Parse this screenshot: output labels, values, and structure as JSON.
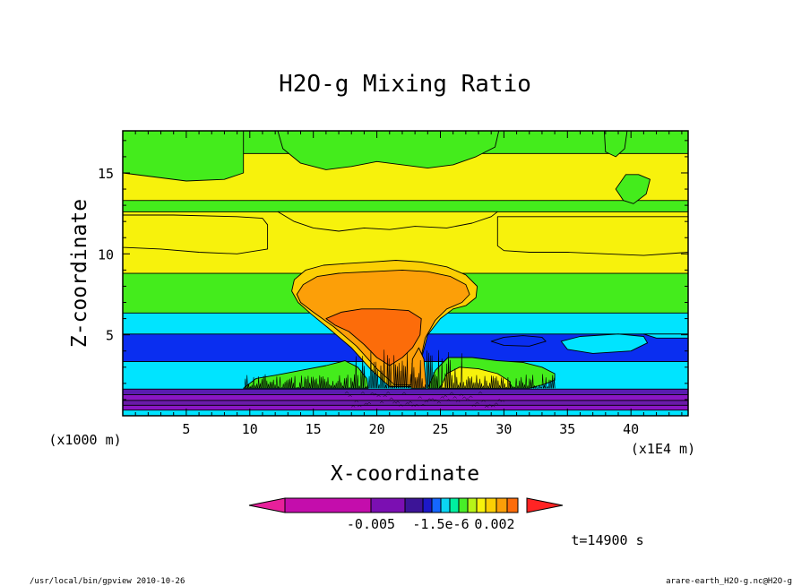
{
  "chart_data": {
    "type": "heatmap",
    "title": "H2O-g Mixing Ratio",
    "xlabel": "X-coordinate",
    "ylabel": "Z-coordinate",
    "x_unit_note": "(x1E4 m)",
    "y_unit_note": "(x1000 m)",
    "xlim": [
      0,
      44.5
    ],
    "ylim": [
      0,
      17.6
    ],
    "x_ticks": [
      5,
      10,
      15,
      20,
      25,
      30,
      35,
      40
    ],
    "y_ticks": [
      5,
      10,
      15
    ],
    "colorbar": {
      "colors": [
        "#e7209b",
        "#c40dac",
        "#7b0fb2",
        "#3c1497",
        "#1d18c7",
        "#1566ff",
        "#0bd6f4",
        "#00f0a0",
        "#48ee28",
        "#b7f418",
        "#f7f20c",
        "#fccf04",
        "#fc9f08",
        "#fc6c0a",
        "#ff2424"
      ],
      "labels": [
        "-0.005",
        "-1.5e-6",
        "0.002"
      ]
    },
    "time_label": "t=14900 s",
    "footer_left": "/usr/local/bin/gpview  2010-10-26",
    "footer_right": "arare-earth_H2O-g.nc@H2O-g",
    "bands": [
      {
        "z_from": 0,
        "z_to": 0.35,
        "color": "#00e4ff"
      },
      {
        "z_from": 0.35,
        "z_to": 0.65,
        "color": "#8a16c4"
      },
      {
        "z_from": 0.65,
        "z_to": 0.95,
        "color": "#6a1aa8"
      },
      {
        "z_from": 0.95,
        "z_to": 1.3,
        "color": "#8a16c4"
      },
      {
        "z_from": 1.3,
        "z_to": 1.65,
        "color": "#5a1cb0"
      },
      {
        "z_from": 1.65,
        "z_to": 3.35,
        "color": "#00e4ff"
      },
      {
        "z_from": 3.35,
        "z_to": 5.05,
        "color": "#0a2ef0"
      },
      {
        "z_from": 5.05,
        "z_to": 6.35,
        "color": "#00e4ff"
      },
      {
        "z_from": 6.35,
        "z_to": 8.8,
        "color": "#44ec1c"
      },
      {
        "z_from": 8.8,
        "z_to": 12.6,
        "color": "#f7f20c"
      },
      {
        "z_from": 12.6,
        "z_to": 13.3,
        "color": "#44ec1c"
      },
      {
        "z_from": 13.3,
        "z_to": 16.2,
        "color": "#f7f20c"
      },
      {
        "z_from": 16.2,
        "z_to": 17.6,
        "color": "#44ec1c"
      }
    ],
    "regions": [
      {
        "color": "#f7f20c",
        "points": [
          [
            12.2,
            12.6
          ],
          [
            13.5,
            12.0
          ],
          [
            15.0,
            11.6
          ],
          [
            17.0,
            11.4
          ],
          [
            19.0,
            11.6
          ],
          [
            21.0,
            11.5
          ],
          [
            23.0,
            11.7
          ],
          [
            25.5,
            11.6
          ],
          [
            27.5,
            11.9
          ],
          [
            29.0,
            12.3
          ],
          [
            29.5,
            12.6
          ]
        ]
      },
      {
        "color": "#44ec1c",
        "points": [
          [
            0,
            15.0
          ],
          [
            5.0,
            14.5
          ],
          [
            8.0,
            14.6
          ],
          [
            9.5,
            15.0
          ],
          [
            9.5,
            17.6
          ],
          [
            0,
            17.6
          ]
        ]
      },
      {
        "color": "#44ec1c",
        "points": [
          [
            12.2,
            17.6
          ],
          [
            12.6,
            16.5
          ],
          [
            14.0,
            15.6
          ],
          [
            16.0,
            15.2
          ],
          [
            18.0,
            15.4
          ],
          [
            20.0,
            15.7
          ],
          [
            22.0,
            15.5
          ],
          [
            24.0,
            15.3
          ],
          [
            26.0,
            15.5
          ],
          [
            27.8,
            16.0
          ],
          [
            29.3,
            16.6
          ],
          [
            29.6,
            17.6
          ]
        ]
      },
      {
        "color": "#44ec1c",
        "points": [
          [
            37.9,
            17.6
          ],
          [
            38.0,
            16.3
          ],
          [
            38.8,
            16.0
          ],
          [
            39.5,
            16.5
          ],
          [
            39.7,
            17.6
          ]
        ]
      },
      {
        "color": "#44ec1c",
        "points": [
          [
            38.8,
            14.0
          ],
          [
            39.4,
            13.3
          ],
          [
            40.2,
            13.1
          ],
          [
            41.2,
            13.7
          ],
          [
            41.5,
            14.6
          ],
          [
            40.6,
            14.9
          ],
          [
            39.6,
            14.9
          ]
        ]
      },
      {
        "color": "#f7f20c",
        "points": [
          [
            29.5,
            12.3
          ],
          [
            32.0,
            12.3
          ],
          [
            36.0,
            12.3
          ],
          [
            40.0,
            12.3
          ],
          [
            44.5,
            12.3
          ],
          [
            44.5,
            10.1
          ],
          [
            41.0,
            9.9
          ],
          [
            38.0,
            10.0
          ],
          [
            35.0,
            10.1
          ],
          [
            32.0,
            10.1
          ],
          [
            30.0,
            10.2
          ],
          [
            29.5,
            10.5
          ]
        ]
      },
      {
        "color": "#f7f20c",
        "points": [
          [
            0,
            12.4
          ],
          [
            4.0,
            12.4
          ],
          [
            9.0,
            12.3
          ],
          [
            11.0,
            12.2
          ],
          [
            11.4,
            11.8
          ],
          [
            11.4,
            10.3
          ],
          [
            9.0,
            10.0
          ],
          [
            6.0,
            10.1
          ],
          [
            3.0,
            10.3
          ],
          [
            0,
            10.4
          ]
        ]
      },
      {
        "color": "#fccf04",
        "points": [
          [
            13.3,
            7.7
          ],
          [
            13.5,
            8.4
          ],
          [
            14.4,
            9.0
          ],
          [
            15.8,
            9.3
          ],
          [
            17.5,
            9.4
          ],
          [
            19.5,
            9.5
          ],
          [
            21.5,
            9.6
          ],
          [
            23.5,
            9.5
          ],
          [
            25.5,
            9.2
          ],
          [
            27.0,
            8.7
          ],
          [
            27.9,
            8.0
          ],
          [
            27.8,
            7.3
          ],
          [
            27.0,
            6.8
          ],
          [
            26.0,
            6.6
          ],
          [
            25.0,
            6.0
          ],
          [
            24.0,
            5.0
          ],
          [
            23.5,
            3.5
          ],
          [
            23.0,
            1.8
          ],
          [
            21.0,
            1.8
          ],
          [
            19.6,
            2.8
          ],
          [
            18.0,
            4.2
          ],
          [
            16.2,
            5.4
          ],
          [
            14.8,
            6.3
          ],
          [
            13.8,
            7.0
          ]
        ]
      },
      {
        "color": "#fc9f08",
        "points": [
          [
            13.7,
            7.5
          ],
          [
            14.2,
            8.1
          ],
          [
            15.3,
            8.6
          ],
          [
            17.0,
            8.8
          ],
          [
            19.5,
            8.9
          ],
          [
            22.0,
            9.0
          ],
          [
            24.0,
            8.9
          ],
          [
            25.8,
            8.6
          ],
          [
            27.0,
            8.1
          ],
          [
            27.3,
            7.5
          ],
          [
            26.7,
            7.0
          ],
          [
            25.5,
            6.6
          ],
          [
            24.6,
            5.9
          ],
          [
            23.8,
            4.8
          ],
          [
            23.4,
            3.3
          ],
          [
            22.9,
            1.9
          ],
          [
            21.4,
            1.9
          ],
          [
            20.0,
            2.9
          ],
          [
            18.4,
            4.3
          ],
          [
            16.6,
            5.5
          ],
          [
            15.0,
            6.4
          ],
          [
            14.0,
            7.0
          ]
        ]
      },
      {
        "color": "#fc6c0a",
        "points": [
          [
            16.0,
            6.0
          ],
          [
            17.2,
            6.4
          ],
          [
            18.8,
            6.6
          ],
          [
            20.5,
            6.6
          ],
          [
            22.5,
            6.5
          ],
          [
            23.5,
            6.0
          ],
          [
            23.4,
            5.0
          ],
          [
            22.8,
            4.2
          ],
          [
            22.0,
            3.6
          ],
          [
            21.0,
            3.1
          ],
          [
            20.0,
            3.6
          ],
          [
            19.0,
            4.4
          ],
          [
            17.8,
            5.2
          ],
          [
            16.7,
            5.6
          ]
        ]
      },
      {
        "color": "#0a2ef0",
        "points": [
          [
            29.0,
            4.6
          ],
          [
            30.0,
            4.85
          ],
          [
            31.5,
            4.95
          ],
          [
            33.0,
            4.85
          ],
          [
            33.3,
            4.6
          ],
          [
            32.0,
            4.3
          ],
          [
            30.0,
            4.35
          ]
        ]
      },
      {
        "color": "#00e4ff",
        "points": [
          [
            34.5,
            4.6
          ],
          [
            36.0,
            4.9
          ],
          [
            39.0,
            5.05
          ],
          [
            41.0,
            4.9
          ],
          [
            41.3,
            4.5
          ],
          [
            40.0,
            4.0
          ],
          [
            37.0,
            3.85
          ],
          [
            35.0,
            4.1
          ]
        ]
      },
      {
        "color": "#00e4ff",
        "points": [
          [
            41.0,
            5.05
          ],
          [
            44.5,
            5.05
          ],
          [
            44.5,
            4.8
          ],
          [
            42.0,
            4.8
          ]
        ]
      },
      {
        "color": "#44ec1c",
        "points": [
          [
            9.5,
            1.7
          ],
          [
            10.5,
            2.3
          ],
          [
            12.0,
            2.5
          ],
          [
            14.0,
            2.8
          ],
          [
            16.0,
            3.1
          ],
          [
            17.5,
            3.4
          ],
          [
            18.5,
            3.0
          ],
          [
            19.2,
            2.3
          ],
          [
            19.3,
            1.7
          ]
        ]
      },
      {
        "color": "#44ec1c",
        "points": [
          [
            24.0,
            1.7
          ],
          [
            24.6,
            2.8
          ],
          [
            25.6,
            3.6
          ],
          [
            27.5,
            3.6
          ],
          [
            29.5,
            3.4
          ],
          [
            31.5,
            3.3
          ],
          [
            33.0,
            3.0
          ],
          [
            34.0,
            2.6
          ],
          [
            34.0,
            2.2
          ],
          [
            33.0,
            1.9
          ],
          [
            32.0,
            1.7
          ]
        ]
      },
      {
        "color": "#f7f20c",
        "points": [
          [
            25.0,
            1.7
          ],
          [
            25.5,
            2.6
          ],
          [
            26.5,
            3.0
          ],
          [
            28.0,
            2.9
          ],
          [
            29.5,
            2.6
          ],
          [
            30.5,
            2.1
          ],
          [
            30.5,
            1.7
          ]
        ]
      },
      {
        "color": "#fc9f08",
        "points": [
          [
            22.7,
            1.7
          ],
          [
            22.8,
            3.5
          ],
          [
            23.3,
            4.2
          ],
          [
            23.7,
            3.5
          ],
          [
            23.9,
            1.7
          ]
        ]
      }
    ]
  }
}
